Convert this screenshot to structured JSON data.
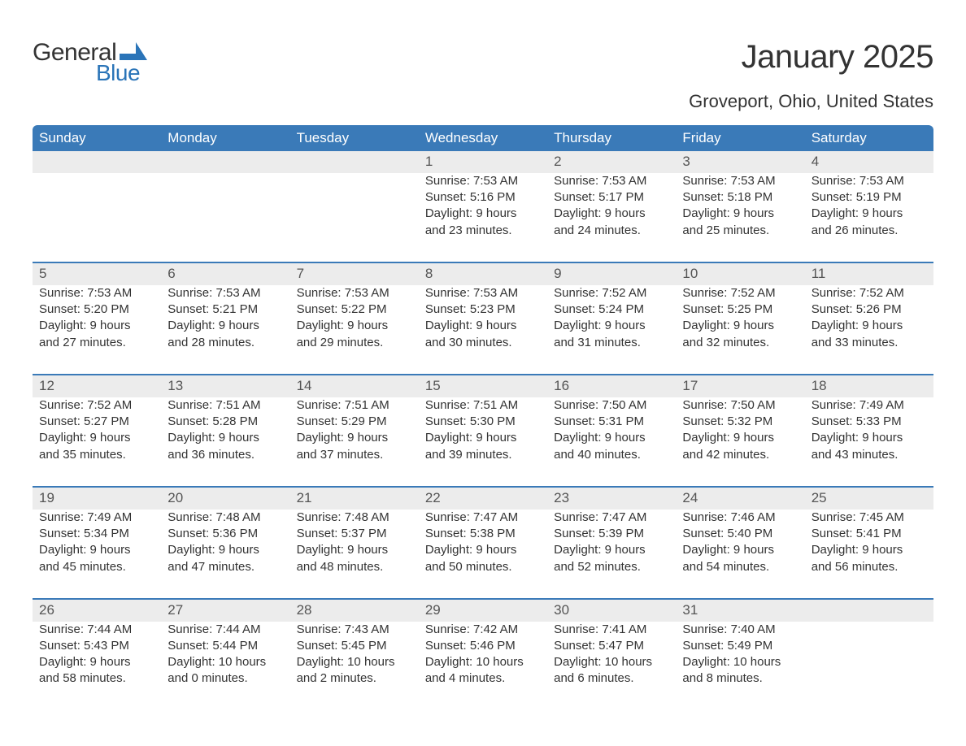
{
  "brand": {
    "word1": "General",
    "word2": "Blue",
    "mark_color": "#2a74b8"
  },
  "title": "January 2025",
  "subtitle": "Groveport, Ohio, United States",
  "colors": {
    "header_bg": "#3a7ab8",
    "header_text": "#ffffff",
    "daynum_bg": "#ececec",
    "text": "#333333",
    "rule": "#3a7ab8"
  },
  "day_headers": [
    "Sunday",
    "Monday",
    "Tuesday",
    "Wednesday",
    "Thursday",
    "Friday",
    "Saturday"
  ],
  "weeks": [
    [
      null,
      null,
      null,
      {
        "n": "1",
        "sunrise": "Sunrise: 7:53 AM",
        "sunset": "Sunset: 5:16 PM",
        "d1": "Daylight: 9 hours",
        "d2": "and 23 minutes."
      },
      {
        "n": "2",
        "sunrise": "Sunrise: 7:53 AM",
        "sunset": "Sunset: 5:17 PM",
        "d1": "Daylight: 9 hours",
        "d2": "and 24 minutes."
      },
      {
        "n": "3",
        "sunrise": "Sunrise: 7:53 AM",
        "sunset": "Sunset: 5:18 PM",
        "d1": "Daylight: 9 hours",
        "d2": "and 25 minutes."
      },
      {
        "n": "4",
        "sunrise": "Sunrise: 7:53 AM",
        "sunset": "Sunset: 5:19 PM",
        "d1": "Daylight: 9 hours",
        "d2": "and 26 minutes."
      }
    ],
    [
      {
        "n": "5",
        "sunrise": "Sunrise: 7:53 AM",
        "sunset": "Sunset: 5:20 PM",
        "d1": "Daylight: 9 hours",
        "d2": "and 27 minutes."
      },
      {
        "n": "6",
        "sunrise": "Sunrise: 7:53 AM",
        "sunset": "Sunset: 5:21 PM",
        "d1": "Daylight: 9 hours",
        "d2": "and 28 minutes."
      },
      {
        "n": "7",
        "sunrise": "Sunrise: 7:53 AM",
        "sunset": "Sunset: 5:22 PM",
        "d1": "Daylight: 9 hours",
        "d2": "and 29 minutes."
      },
      {
        "n": "8",
        "sunrise": "Sunrise: 7:53 AM",
        "sunset": "Sunset: 5:23 PM",
        "d1": "Daylight: 9 hours",
        "d2": "and 30 minutes."
      },
      {
        "n": "9",
        "sunrise": "Sunrise: 7:52 AM",
        "sunset": "Sunset: 5:24 PM",
        "d1": "Daylight: 9 hours",
        "d2": "and 31 minutes."
      },
      {
        "n": "10",
        "sunrise": "Sunrise: 7:52 AM",
        "sunset": "Sunset: 5:25 PM",
        "d1": "Daylight: 9 hours",
        "d2": "and 32 minutes."
      },
      {
        "n": "11",
        "sunrise": "Sunrise: 7:52 AM",
        "sunset": "Sunset: 5:26 PM",
        "d1": "Daylight: 9 hours",
        "d2": "and 33 minutes."
      }
    ],
    [
      {
        "n": "12",
        "sunrise": "Sunrise: 7:52 AM",
        "sunset": "Sunset: 5:27 PM",
        "d1": "Daylight: 9 hours",
        "d2": "and 35 minutes."
      },
      {
        "n": "13",
        "sunrise": "Sunrise: 7:51 AM",
        "sunset": "Sunset: 5:28 PM",
        "d1": "Daylight: 9 hours",
        "d2": "and 36 minutes."
      },
      {
        "n": "14",
        "sunrise": "Sunrise: 7:51 AM",
        "sunset": "Sunset: 5:29 PM",
        "d1": "Daylight: 9 hours",
        "d2": "and 37 minutes."
      },
      {
        "n": "15",
        "sunrise": "Sunrise: 7:51 AM",
        "sunset": "Sunset: 5:30 PM",
        "d1": "Daylight: 9 hours",
        "d2": "and 39 minutes."
      },
      {
        "n": "16",
        "sunrise": "Sunrise: 7:50 AM",
        "sunset": "Sunset: 5:31 PM",
        "d1": "Daylight: 9 hours",
        "d2": "and 40 minutes."
      },
      {
        "n": "17",
        "sunrise": "Sunrise: 7:50 AM",
        "sunset": "Sunset: 5:32 PM",
        "d1": "Daylight: 9 hours",
        "d2": "and 42 minutes."
      },
      {
        "n": "18",
        "sunrise": "Sunrise: 7:49 AM",
        "sunset": "Sunset: 5:33 PM",
        "d1": "Daylight: 9 hours",
        "d2": "and 43 minutes."
      }
    ],
    [
      {
        "n": "19",
        "sunrise": "Sunrise: 7:49 AM",
        "sunset": "Sunset: 5:34 PM",
        "d1": "Daylight: 9 hours",
        "d2": "and 45 minutes."
      },
      {
        "n": "20",
        "sunrise": "Sunrise: 7:48 AM",
        "sunset": "Sunset: 5:36 PM",
        "d1": "Daylight: 9 hours",
        "d2": "and 47 minutes."
      },
      {
        "n": "21",
        "sunrise": "Sunrise: 7:48 AM",
        "sunset": "Sunset: 5:37 PM",
        "d1": "Daylight: 9 hours",
        "d2": "and 48 minutes."
      },
      {
        "n": "22",
        "sunrise": "Sunrise: 7:47 AM",
        "sunset": "Sunset: 5:38 PM",
        "d1": "Daylight: 9 hours",
        "d2": "and 50 minutes."
      },
      {
        "n": "23",
        "sunrise": "Sunrise: 7:47 AM",
        "sunset": "Sunset: 5:39 PM",
        "d1": "Daylight: 9 hours",
        "d2": "and 52 minutes."
      },
      {
        "n": "24",
        "sunrise": "Sunrise: 7:46 AM",
        "sunset": "Sunset: 5:40 PM",
        "d1": "Daylight: 9 hours",
        "d2": "and 54 minutes."
      },
      {
        "n": "25",
        "sunrise": "Sunrise: 7:45 AM",
        "sunset": "Sunset: 5:41 PM",
        "d1": "Daylight: 9 hours",
        "d2": "and 56 minutes."
      }
    ],
    [
      {
        "n": "26",
        "sunrise": "Sunrise: 7:44 AM",
        "sunset": "Sunset: 5:43 PM",
        "d1": "Daylight: 9 hours",
        "d2": "and 58 minutes."
      },
      {
        "n": "27",
        "sunrise": "Sunrise: 7:44 AM",
        "sunset": "Sunset: 5:44 PM",
        "d1": "Daylight: 10 hours",
        "d2": "and 0 minutes."
      },
      {
        "n": "28",
        "sunrise": "Sunrise: 7:43 AM",
        "sunset": "Sunset: 5:45 PM",
        "d1": "Daylight: 10 hours",
        "d2": "and 2 minutes."
      },
      {
        "n": "29",
        "sunrise": "Sunrise: 7:42 AM",
        "sunset": "Sunset: 5:46 PM",
        "d1": "Daylight: 10 hours",
        "d2": "and 4 minutes."
      },
      {
        "n": "30",
        "sunrise": "Sunrise: 7:41 AM",
        "sunset": "Sunset: 5:47 PM",
        "d1": "Daylight: 10 hours",
        "d2": "and 6 minutes."
      },
      {
        "n": "31",
        "sunrise": "Sunrise: 7:40 AM",
        "sunset": "Sunset: 5:49 PM",
        "d1": "Daylight: 10 hours",
        "d2": "and 8 minutes."
      },
      null
    ]
  ]
}
